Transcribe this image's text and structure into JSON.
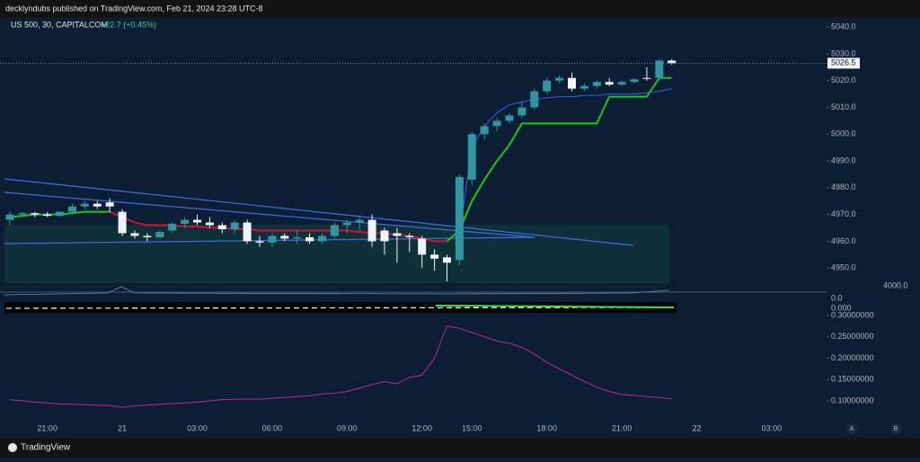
{
  "header": "decklyndubs published on TradingView.com, Feb 21, 2024 23:28 UTC-8",
  "footer": {
    "brand": "TradingView",
    "buttons": [
      "A",
      "B"
    ]
  },
  "pane_labels": [
    "4000.0",
    "0.0",
    "0.000"
  ],
  "chart_data": [
    {
      "type": "candlestick",
      "title": "US 500, 30, CAPITALCOM",
      "subtitle": "+22.7 (+0.45%)",
      "categories": [
        null,
        null,
        null,
        "21:00",
        null,
        null,
        null,
        null,
        null,
        "21",
        null,
        null,
        null,
        null,
        null,
        "03:00",
        null,
        null,
        null,
        null,
        null,
        "06:00",
        null,
        null,
        null,
        null,
        null,
        "09:00",
        null,
        null,
        null,
        null,
        null,
        "12:00",
        null,
        null,
        null,
        "15:00",
        null,
        null,
        null,
        null,
        null,
        "18:00",
        null,
        null,
        null,
        null,
        null,
        "21:00",
        null,
        null,
        null,
        null,
        null,
        "22",
        null,
        null,
        null,
        null,
        null,
        "03:00"
      ],
      "open": [
        4968,
        4970,
        4970.5,
        4970,
        4969.5,
        4971,
        4973,
        4974,
        4974.5,
        4971,
        4963,
        4962,
        4961.5,
        4964,
        4966.5,
        4968,
        4967,
        4966,
        4964.5,
        4967,
        4960,
        4959.5,
        4962,
        4961,
        4961.5,
        4960,
        4962,
        4966,
        4967,
        4968,
        4964,
        4963,
        4962,
        4961,
        4955,
        4954,
        4953,
        4983,
        5000,
        5003,
        5005,
        5007,
        5010,
        5016,
        5020,
        5021,
        5017,
        5018,
        5019.5,
        5018.5,
        5019.5,
        5021,
        5021,
        5027.5,
        null,
        null,
        null,
        null,
        null,
        null,
        null,
        null
      ],
      "high": [
        4971,
        4971,
        4971,
        4971,
        4971,
        4974,
        4975,
        4975,
        4976,
        4972,
        4964,
        4963,
        4964,
        4967,
        4969,
        4970,
        4969,
        4967,
        4968,
        4968,
        4962,
        4963,
        4963,
        4964,
        4963,
        4963,
        4967,
        4968,
        4969,
        4970,
        4965,
        4965,
        4963,
        4962,
        4957,
        4955,
        4985,
        5001,
        5004,
        5006,
        5008,
        5012,
        5017,
        5021,
        5022,
        5023,
        5019,
        5020,
        5021,
        5020,
        5021,
        5025,
        5028,
        5028,
        null,
        null,
        null,
        null,
        null,
        null,
        null,
        null
      ],
      "low": [
        4966,
        4969,
        4969,
        4969,
        4969,
        4970,
        4972,
        4972,
        4971,
        4962,
        4961,
        4960,
        4961,
        4963,
        4965,
        4966,
        4965,
        4963,
        4963,
        4959,
        4958,
        4958,
        4960,
        4959,
        4959,
        4959,
        4961,
        4963,
        4964,
        4958,
        4955,
        4952,
        4956,
        4950,
        4949,
        4945,
        4951,
        4981,
        4998,
        5001,
        5004,
        5006,
        5009,
        5015,
        5019,
        5016,
        5016,
        5017,
        5018,
        5018,
        5019,
        5020,
        5020,
        5026,
        null,
        null,
        null,
        null,
        null,
        null,
        null,
        null
      ],
      "close": [
        4970,
        4970.5,
        4970,
        4969.5,
        4971,
        4973,
        4974,
        4973,
        4973,
        4963,
        4962,
        4961.5,
        4963.5,
        4966.5,
        4968,
        4967,
        4966,
        4964.5,
        4967,
        4960,
        4959.5,
        4962,
        4961,
        4961.5,
        4960,
        4962,
        4966,
        4967,
        4968,
        4960,
        4960,
        4962,
        4961.5,
        4955,
        4953.5,
        4952,
        4984,
        5000,
        5003,
        5005,
        5007,
        5010,
        5016,
        5020,
        5021,
        5017,
        5018,
        5019.5,
        5018.5,
        5019.5,
        5020.5,
        5020.8,
        5027.5,
        5026.5,
        null,
        null,
        null,
        null,
        null,
        null,
        null,
        null
      ],
      "up_color": "#3196a0",
      "down_color": "#f0f3fa",
      "series": [
        {
          "color": "#22c41c",
          "values": [
            4969,
            4969.5,
            4970,
            4970,
            4970,
            4970.5,
            4971,
            4971,
            4971,
            null,
            null,
            null,
            null,
            null,
            null,
            null,
            null,
            null,
            null,
            null,
            null,
            null,
            null,
            null,
            null,
            null,
            null,
            null,
            null,
            null,
            null,
            null,
            null,
            null,
            null,
            null,
            null,
            null,
            null,
            null,
            null,
            null,
            null,
            null,
            null,
            null,
            null,
            null,
            null,
            null,
            null,
            null,
            null,
            null,
            null,
            null,
            null,
            null,
            null,
            null,
            null,
            null
          ]
        },
        {
          "color": "#d0103a",
          "values": [
            null,
            null,
            null,
            null,
            null,
            null,
            null,
            null,
            4971,
            4969,
            4967,
            4966,
            4966,
            4966,
            4965.5,
            4965.5,
            4965,
            4965,
            4964.5,
            4964.5,
            4964,
            4964,
            4964,
            4964,
            4964,
            4964,
            4964,
            4964,
            4963.5,
            4963,
            4963,
            4962.5,
            4962,
            4961,
            4960,
            4960,
            null,
            null,
            null,
            null,
            null,
            null,
            null,
            null,
            null,
            null,
            null,
            null,
            null,
            null,
            null,
            null,
            null,
            null,
            null,
            null,
            null,
            null,
            null,
            null,
            null,
            null
          ]
        },
        {
          "color": "#22c41c",
          "values": [
            null,
            null,
            null,
            null,
            null,
            null,
            null,
            null,
            null,
            null,
            null,
            null,
            null,
            null,
            null,
            null,
            null,
            null,
            null,
            null,
            null,
            null,
            null,
            null,
            null,
            null,
            null,
            null,
            null,
            null,
            null,
            null,
            null,
            null,
            null,
            4960,
            4964,
            4975,
            4983,
            4990,
            4996,
            5004,
            5004,
            5004,
            5004,
            5004,
            5004,
            5004,
            5014,
            5014,
            5014,
            5014,
            5021,
            5021,
            null,
            null,
            null,
            null,
            null,
            null,
            null,
            null
          ]
        },
        {
          "color": "#2962ff",
          "values": [
            null,
            null,
            null,
            null,
            null,
            null,
            null,
            null,
            null,
            null,
            null,
            null,
            null,
            null,
            null,
            null,
            null,
            null,
            null,
            null,
            null,
            null,
            null,
            null,
            null,
            null,
            null,
            null,
            null,
            null,
            null,
            null,
            null,
            null,
            null,
            null,
            4963,
            4995,
            5003,
            5008,
            5011,
            5012,
            5013,
            5013.5,
            5014,
            5014,
            5014.5,
            5014.5,
            5015,
            5015,
            5015,
            5015.5,
            5016,
            5017,
            null,
            null,
            null,
            null,
            null,
            null,
            null,
            null
          ]
        }
      ],
      "last_price": 5026.5,
      "ylim": [
        4941,
        5043.4
      ],
      "yticks": [
        {
          "value": 4950,
          "label": "4950.0"
        },
        {
          "value": 4960,
          "label": "4960.0"
        },
        {
          "value": 4970,
          "label": "4970.0"
        },
        {
          "value": 4980,
          "label": "4980.0"
        },
        {
          "value": 4990,
          "label": "4990.0"
        },
        {
          "value": 5000,
          "label": "5000.0"
        },
        {
          "value": 5010,
          "label": "5010.0"
        },
        {
          "value": 5020,
          "label": "5020.0"
        },
        {
          "value": 5030,
          "label": "5030.0"
        },
        {
          "value": 5040,
          "label": "5040.0"
        }
      ]
    },
    {
      "type": "line",
      "color": "#c0279a",
      "values": [
        0.103,
        0.1,
        0.097,
        0.095,
        0.093,
        0.092,
        0.091,
        0.09,
        0.089,
        0.085,
        0.088,
        0.09,
        0.092,
        0.094,
        0.095,
        0.097,
        0.1,
        0.103,
        0.104,
        0.104,
        0.104,
        0.106,
        0.108,
        0.11,
        0.112,
        0.116,
        0.118,
        0.122,
        0.13,
        0.138,
        0.145,
        0.14,
        0.155,
        0.16,
        0.2,
        0.275,
        0.27,
        0.26,
        0.25,
        0.24,
        0.235,
        0.225,
        0.21,
        0.19,
        0.175,
        0.16,
        0.145,
        0.132,
        0.122,
        0.115,
        0.113,
        0.11,
        0.108,
        0.105,
        null,
        null,
        null,
        null,
        null,
        null,
        null,
        null
      ],
      "ylim": [
        0.06,
        0.302
      ],
      "yticks": [
        {
          "value": 0.1,
          "label": "0.10000000"
        },
        {
          "value": 0.15,
          "label": "0.15000000"
        },
        {
          "value": 0.2,
          "label": "0.20000000"
        },
        {
          "value": 0.25,
          "label": "0.25000000"
        },
        {
          "value": 0.3,
          "label": "0.30000000"
        }
      ]
    }
  ]
}
